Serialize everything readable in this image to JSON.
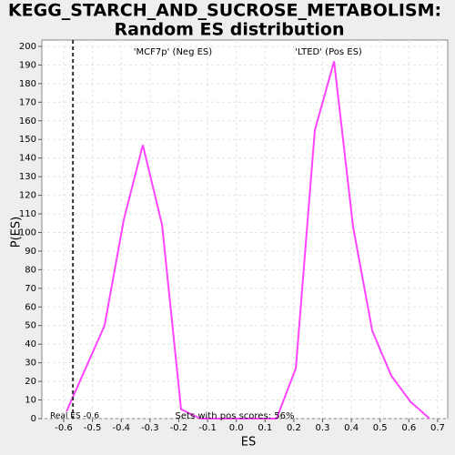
{
  "chart_data": {
    "type": "line",
    "title": [
      "KEGG_STARCH_AND_SUCROSE_METABOLISM:",
      "Random ES distribution"
    ],
    "x_label": "ES",
    "y_label": "P(ES)",
    "x": [
      -0.59,
      -0.458,
      -0.391,
      -0.325,
      -0.258,
      -0.192,
      -0.125,
      -0.059,
      0.008,
      0.074,
      0.14,
      0.207,
      0.273,
      0.34,
      0.406,
      0.473,
      0.539,
      0.606,
      0.672
    ],
    "series": [
      {
        "color": "#ff44ff",
        "values": [
          4,
          50,
          107,
          147,
          104,
          5,
          0,
          0,
          0,
          0,
          0,
          27,
          155,
          192,
          103,
          47,
          23,
          9,
          0
        ]
      }
    ],
    "xlim": [
      -0.676,
      0.735
    ],
    "xticks": [
      -0.6,
      -0.5,
      -0.4,
      -0.3,
      -0.2,
      -0.1,
      {
        "value": 0,
        "label": "0.0"
      },
      0.1,
      0.2,
      0.3,
      0.4,
      0.5,
      0.6,
      0.7
    ],
    "ylim": [
      0,
      203.4
    ],
    "yticks": [
      0,
      10,
      20,
      30,
      40,
      50,
      60,
      70,
      80,
      90,
      100,
      110,
      120,
      130,
      140,
      150,
      160,
      170,
      180,
      190,
      200
    ],
    "grid": true,
    "real_es": -0.568,
    "annotations": {
      "neg": "'MCF7p' (Neg ES)",
      "pos": "'LTED' (Pos ES)",
      "real": "Real ES -0.6",
      "sets": "Sets with pos scores: 56%"
    },
    "annotation_colors": {
      "neg": "#3333cc",
      "pos": "#cc3333"
    }
  }
}
